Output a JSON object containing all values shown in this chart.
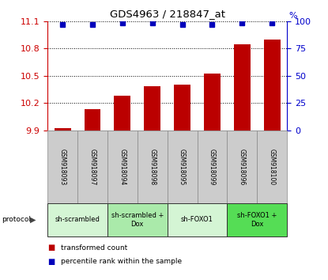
{
  "title": "GDS4963 / 218847_at",
  "samples": [
    "GSM918093",
    "GSM918097",
    "GSM918094",
    "GSM918098",
    "GSM918095",
    "GSM918099",
    "GSM918096",
    "GSM918100"
  ],
  "transformed_counts": [
    9.92,
    10.13,
    10.28,
    10.38,
    10.4,
    10.52,
    10.84,
    10.9
  ],
  "percentile_ranks": [
    97,
    97,
    98,
    98,
    97,
    97,
    98,
    98
  ],
  "ylim_left": [
    9.9,
    11.1
  ],
  "ylim_right": [
    0,
    100
  ],
  "yticks_left": [
    9.9,
    10.2,
    10.5,
    10.8,
    11.1
  ],
  "yticks_right": [
    0,
    25,
    50,
    75,
    100
  ],
  "bar_color": "#bb0000",
  "dot_color": "#0000bb",
  "groups": [
    {
      "label": "sh-scrambled",
      "start": 0,
      "end": 2,
      "color": "#d4f5d4"
    },
    {
      "label": "sh-scrambled +\nDox",
      "start": 2,
      "end": 4,
      "color": "#aaeaaa"
    },
    {
      "label": "sh-FOXO1",
      "start": 4,
      "end": 6,
      "color": "#d4f5d4"
    },
    {
      "label": "sh-FOXO1 +\nDox",
      "start": 6,
      "end": 8,
      "color": "#55dd55"
    }
  ],
  "legend_items": [
    {
      "color": "#bb0000",
      "label": "transformed count"
    },
    {
      "color": "#0000bb",
      "label": "percentile rank within the sample"
    }
  ],
  "left_axis_color": "#cc0000",
  "right_axis_color": "#0000cc",
  "sample_box_color": "#cccccc",
  "sample_box_edge": "#888888",
  "group_box_edge": "#333333",
  "protocol_arrow_color": "#444444"
}
